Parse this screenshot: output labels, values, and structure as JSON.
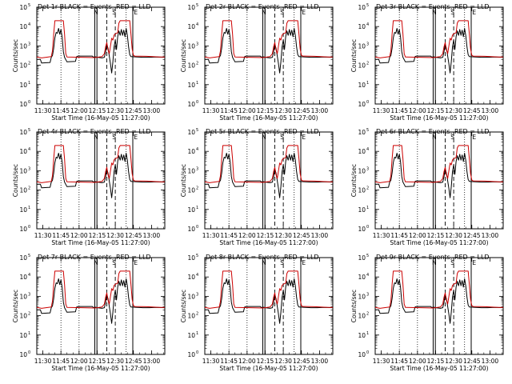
{
  "chart_data": {
    "type": "line",
    "layout": "3x3 grid",
    "yscale": "log",
    "ylim": [
      1,
      100000
    ],
    "ytick_exponents": [
      0,
      1,
      2,
      3,
      4,
      5
    ],
    "ytick_base": "10",
    "ylabel": "Counts/sec",
    "xlabel": "Start Time (16-May-05 11:27:00)",
    "xlim_minutes": [
      -2,
      104
    ],
    "xticks": [
      {
        "min": 3,
        "label": "11:30"
      },
      {
        "min": 18,
        "label": "11:45"
      },
      {
        "min": 33,
        "label": "12:00"
      },
      {
        "min": 48,
        "label": "12:15"
      },
      {
        "min": 63,
        "label": "12:30"
      },
      {
        "min": 78,
        "label": "12:45"
      },
      {
        "min": 93,
        "label": "13:00"
      }
    ],
    "markers": {
      "dotted": [
        18,
        33,
        72
      ],
      "solid": [
        46,
        47.8,
        77.5
      ],
      "dashed": [
        56,
        63
      ],
      "tags": [
        {
          "label": "N",
          "min": 47
        },
        {
          "label": "S",
          "min": 62
        },
        {
          "label": "E",
          "min": 80
        }
      ]
    },
    "panels": [
      {
        "title": "Det 1r  BLACK = Events, RED = LLD"
      },
      {
        "title": "Det 2r  BLACK = Events, RED = LLD"
      },
      {
        "title": "Det 3r  BLACK = Events, RED = LLD"
      },
      {
        "title": "Det 4r  BLACK = Events, RED = LLD"
      },
      {
        "title": "Det 5r  BLACK = Events, RED = LLD"
      },
      {
        "title": "Det 6r  BLACK = Events, RED = LLD"
      },
      {
        "title": "Det 7r  BLACK = Events, RED = LLD"
      },
      {
        "title": "Det 8r  BLACK = Events, RED = LLD"
      },
      {
        "title": "Det 9r  BLACK = Events, RED = LLD"
      }
    ],
    "series": [
      {
        "name": "Events",
        "color": "#000000",
        "points": [
          [
            -2,
            200
          ],
          [
            1,
            200
          ],
          [
            2,
            130
          ],
          [
            9,
            140
          ],
          [
            10,
            260
          ],
          [
            11,
            320
          ],
          [
            12,
            750
          ],
          [
            13,
            2600
          ],
          [
            14,
            5000
          ],
          [
            15,
            4500
          ],
          [
            16,
            8000
          ],
          [
            17,
            4000
          ],
          [
            18,
            7000
          ],
          [
            19,
            2800
          ],
          [
            20,
            500
          ],
          [
            21,
            260
          ],
          [
            23,
            150
          ],
          [
            30,
            160
          ],
          [
            31,
            280
          ],
          [
            32,
            300
          ],
          [
            44,
            300
          ],
          [
            45,
            260
          ],
          [
            46,
            280
          ],
          [
            48,
            260
          ],
          [
            50,
            250
          ],
          [
            52,
            240
          ],
          [
            54,
            260
          ],
          [
            55,
            500
          ],
          [
            56,
            1200
          ],
          [
            57,
            750
          ],
          [
            58,
            300
          ],
          [
            59,
            120
          ],
          [
            60,
            40
          ],
          [
            61,
            150
          ],
          [
            62,
            900
          ],
          [
            63,
            2000
          ],
          [
            64,
            650
          ],
          [
            65,
            3000
          ],
          [
            66,
            6000
          ],
          [
            67,
            3500
          ],
          [
            68,
            7000
          ],
          [
            69,
            3500
          ],
          [
            70,
            6500
          ],
          [
            71,
            3000
          ],
          [
            72,
            8000
          ],
          [
            73,
            3500
          ],
          [
            74,
            900
          ],
          [
            75,
            350
          ],
          [
            76,
            280
          ],
          [
            81,
            270
          ],
          [
            86,
            260
          ],
          [
            91,
            260
          ],
          [
            97,
            270
          ],
          [
            104,
            260
          ]
        ]
      },
      {
        "name": "LLD",
        "color": "#cc0000",
        "points": [
          [
            -2,
            270
          ],
          [
            2,
            240
          ],
          [
            10,
            280
          ],
          [
            11,
            560
          ],
          [
            12,
            4000
          ],
          [
            13,
            20000
          ],
          [
            20,
            20000
          ],
          [
            21,
            4000
          ],
          [
            22,
            400
          ],
          [
            23,
            270
          ],
          [
            46,
            250
          ],
          [
            52,
            280
          ],
          [
            54,
            400
          ],
          [
            55,
            900
          ],
          [
            56,
            1500
          ],
          [
            57,
            600
          ],
          [
            58,
            400
          ],
          [
            59,
            1000
          ],
          [
            60,
            2500
          ],
          [
            61,
            2000
          ],
          [
            62,
            3600
          ],
          [
            63,
            4200
          ],
          [
            65,
            4800
          ],
          [
            66,
            15000
          ],
          [
            67,
            20000
          ],
          [
            75,
            20000
          ],
          [
            76,
            4000
          ],
          [
            77,
            700
          ],
          [
            78,
            330
          ],
          [
            79,
            300
          ],
          [
            89,
            290
          ],
          [
            100,
            270
          ],
          [
            104,
            270
          ]
        ]
      }
    ]
  }
}
